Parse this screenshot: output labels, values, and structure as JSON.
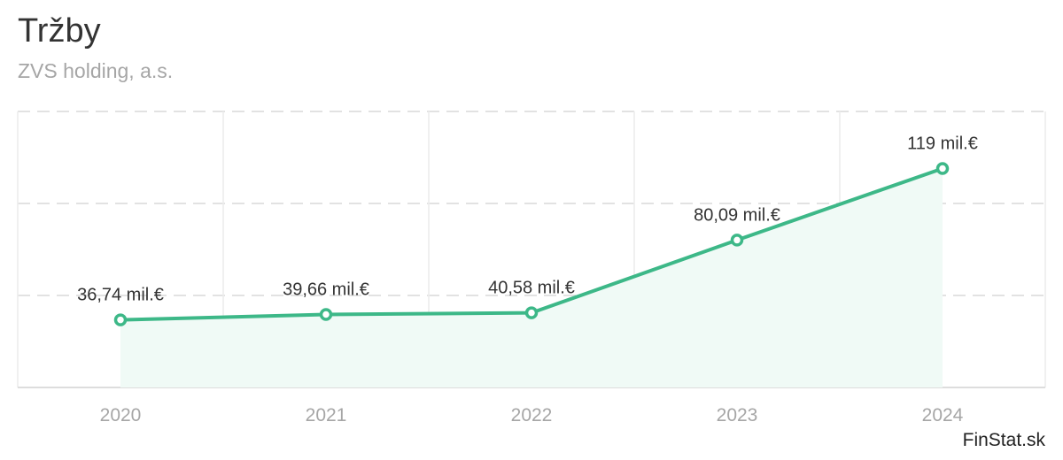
{
  "header": {
    "title": "Tržby",
    "subtitle": "ZVS holding, a.s."
  },
  "brand": "FinStat.sk",
  "chart_data": {
    "type": "area",
    "title": "Tržby",
    "subtitle": "ZVS holding, a.s.",
    "categories": [
      "2020",
      "2021",
      "2022",
      "2023",
      "2024"
    ],
    "values": [
      36.74,
      39.66,
      40.58,
      80.09,
      119
    ],
    "data_labels": [
      "36,74 mil.€",
      "39,66 mil.€",
      "40,58 mil.€",
      "80,09 mil.€",
      "119 mil.€"
    ],
    "ylim": [
      0,
      150
    ],
    "grid": true,
    "legend": "none",
    "colors": {
      "line": "#3db888",
      "fill": "#f0faf6",
      "grid": "#e2e2e2",
      "marker_fill": "#ffffff"
    }
  }
}
